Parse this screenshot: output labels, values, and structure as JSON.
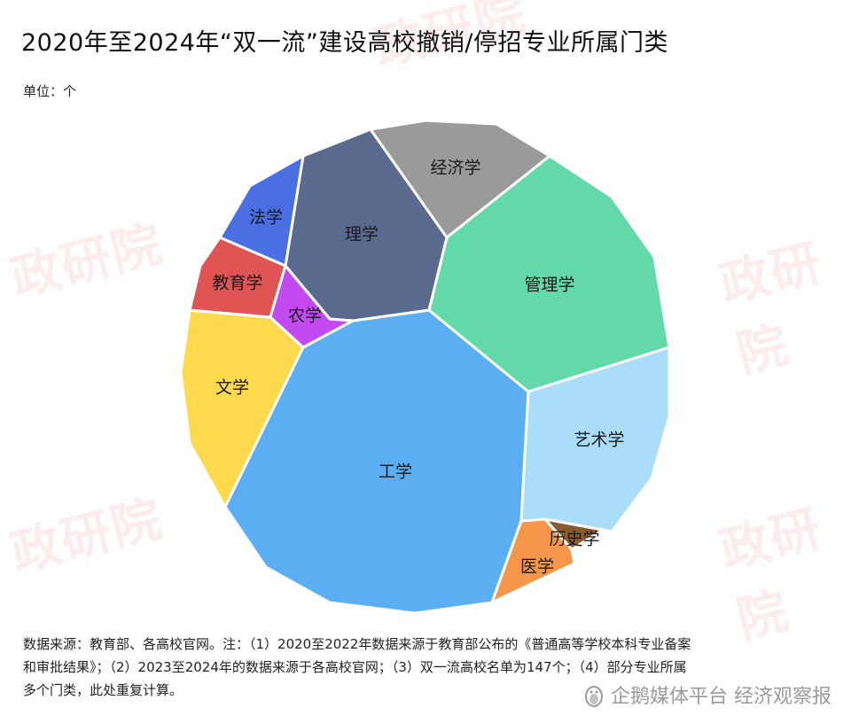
{
  "title": "2020年至2024年“双一流”建设高校撤销/停招专业所属门类",
  "unit": "单位：个",
  "footnote": {
    "line1": "数据来源：教育部、各高校官网。注：（1）2020至2022年数据来源于教育部公布的《普通高等学校本科专业备案",
    "line2": "和审批结果》；（2）2023至2024年的数据来源于各高校官网；（3）双一流高校名单为147个；（4）部分专业所属",
    "line3": "多个门类，此处重复计算。"
  },
  "watermark": "政研院",
  "brand": "企鹅媒体平台 经济观察报",
  "chart_data": {
    "type": "pie",
    "style": "voronoi-treemap",
    "unit": "个",
    "categories": [
      {
        "name": "工学",
        "color": "#5BAEF2"
      },
      {
        "name": "管理学",
        "color": "#63D8A9"
      },
      {
        "name": "理学",
        "color": "#5A6A8F"
      },
      {
        "name": "艺术学",
        "color": "#A9DDF8"
      },
      {
        "name": "文学",
        "color": "#FDD94E"
      },
      {
        "name": "经济学",
        "color": "#9A9A9A"
      },
      {
        "name": "法学",
        "color": "#4A6FE3"
      },
      {
        "name": "教育学",
        "color": "#E05454"
      },
      {
        "name": "农学",
        "color": "#C24AF0"
      },
      {
        "name": "医学",
        "color": "#F5964A"
      },
      {
        "name": "历史学",
        "color": "#8A5A2E"
      }
    ]
  }
}
